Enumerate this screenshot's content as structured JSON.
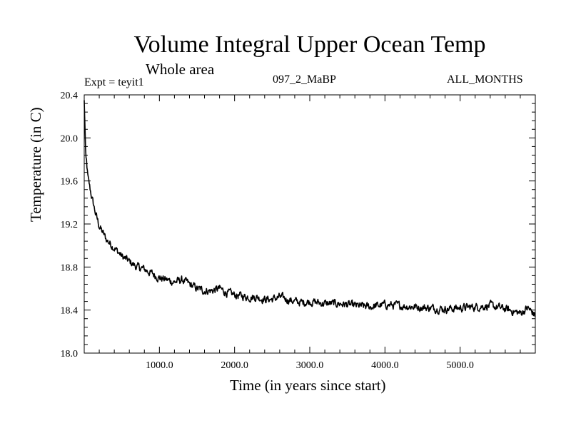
{
  "chart_data": {
    "type": "line",
    "title": "Volume Integral Upper Ocean Temp",
    "subtitle": "Whole area",
    "left_label": "Expt = teyit1",
    "center_label": "097_2_MaBP",
    "right_label": "ALL_MONTHS",
    "xlabel": "Time (in years since start)",
    "ylabel": "Temperature (in C)",
    "xlim": [
      0,
      6000
    ],
    "ylim": [
      18.0,
      20.4
    ],
    "xticks": [
      1000,
      2000,
      3000,
      4000,
      5000
    ],
    "xtick_labels": [
      "1000.0",
      "2000.0",
      "3000.0",
      "4000.0",
      "5000.0"
    ],
    "yticks": [
      18.0,
      18.4,
      18.8,
      19.2,
      19.6,
      20.0,
      20.4
    ],
    "ytick_labels": [
      "18.0",
      "18.4",
      "18.8",
      "19.2",
      "19.6",
      "20.0",
      "20.4"
    ],
    "grid": false,
    "series": [
      {
        "name": "teyit1",
        "x": [
          0,
          20,
          50,
          100,
          150,
          200,
          300,
          400,
          500,
          600,
          700,
          800,
          900,
          1000,
          1100,
          1200,
          1300,
          1400,
          1500,
          1600,
          1700,
          1800,
          1900,
          2000,
          2100,
          2200,
          2300,
          2400,
          2500,
          2600,
          2700,
          2800,
          2900,
          3000,
          3200,
          3400,
          3600,
          3800,
          4000,
          4200,
          4400,
          4600,
          4800,
          5000,
          5200,
          5400,
          5600,
          5800,
          5900,
          6000
        ],
        "values": [
          20.35,
          19.85,
          19.62,
          19.45,
          19.3,
          19.18,
          19.05,
          18.98,
          18.9,
          18.85,
          18.8,
          18.78,
          18.74,
          18.7,
          18.68,
          18.66,
          18.68,
          18.64,
          18.6,
          18.58,
          18.58,
          18.6,
          18.56,
          18.54,
          18.53,
          18.52,
          18.52,
          18.5,
          18.5,
          18.52,
          18.5,
          18.48,
          18.47,
          18.48,
          18.46,
          18.46,
          18.44,
          18.43,
          18.45,
          18.44,
          18.43,
          18.42,
          18.41,
          18.42,
          18.43,
          18.44,
          18.41,
          18.37,
          18.42,
          18.35
        ]
      }
    ]
  }
}
